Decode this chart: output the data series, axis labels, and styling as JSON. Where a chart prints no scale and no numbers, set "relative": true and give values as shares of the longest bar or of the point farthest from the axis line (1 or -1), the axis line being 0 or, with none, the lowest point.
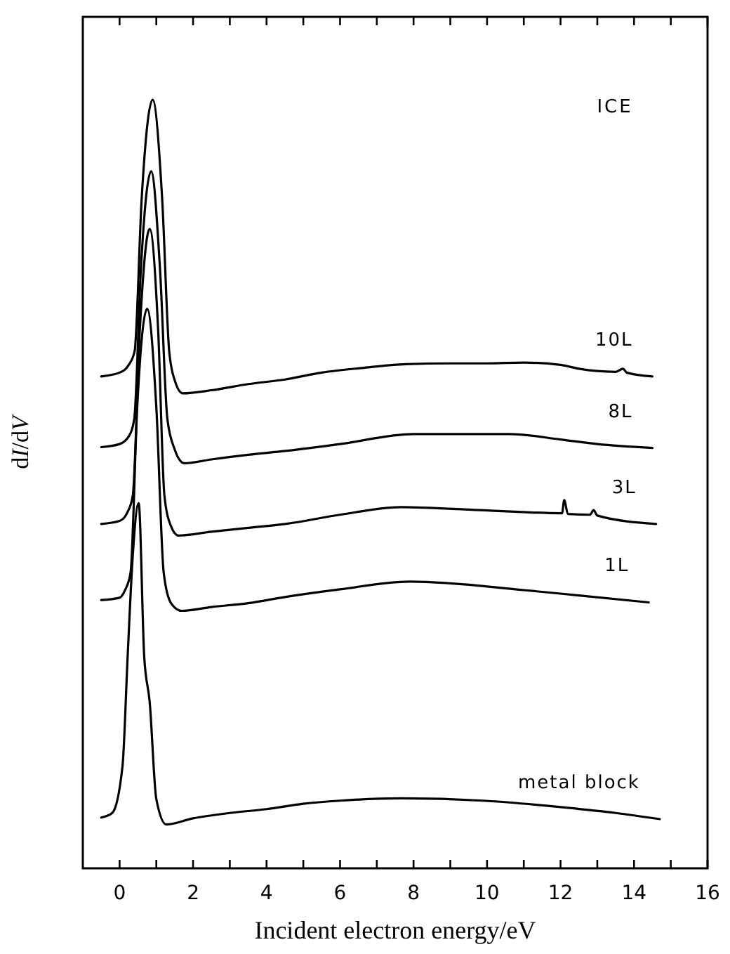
{
  "chart_data": {
    "type": "line",
    "xlabel": "Incident electron energy/eV",
    "ylabel": "dI/dV",
    "relative": true,
    "line_style": "solid",
    "annotations": [
      "ICE"
    ],
    "xlim": [
      -1,
      16
    ],
    "xticks": [
      0,
      {
        "value": 1,
        "label": null
      },
      2,
      {
        "value": 3,
        "label": null
      },
      4,
      {
        "value": 5,
        "label": null
      },
      6,
      {
        "value": 7,
        "label": null
      },
      8,
      {
        "value": 9,
        "label": null
      },
      10,
      {
        "value": 11,
        "label": null
      },
      12,
      {
        "value": 13,
        "label": null
      },
      14,
      {
        "value": 15,
        "label": null
      },
      16
    ],
    "series": [
      {
        "name": "10L",
        "color": "#000000",
        "x": [
          -0.5,
          0,
          0.25,
          0.41,
          0.6,
          0.9,
          1.16,
          1.35,
          1.5,
          1.72,
          2.5,
          3.5,
          4.5,
          5.5,
          6.6,
          7.8,
          9,
          10,
          11,
          12,
          12.5,
          13.5,
          13.7,
          13.8,
          14.5
        ],
        "values": [
          0.64,
          0.645,
          0.655,
          0.673,
          0.87,
          1,
          0.87,
          0.673,
          0.635,
          0.618,
          0.622,
          0.63,
          0.636,
          0.645,
          0.651,
          0.656,
          0.657,
          0.657,
          0.658,
          0.655,
          0.65,
          0.646,
          0.65,
          0.645,
          0.64
        ]
      },
      {
        "name": "8L",
        "color": "#000000",
        "x": [
          -0.5,
          0,
          0.25,
          0.4,
          0.58,
          0.86,
          1.1,
          1.3,
          1.5,
          1.76,
          2.5,
          3.5,
          4.5,
          6,
          8,
          10.6,
          12,
          13,
          14.5
        ],
        "values": [
          0.548,
          0.552,
          0.562,
          0.585,
          0.78,
          0.907,
          0.78,
          0.585,
          0.545,
          0.527,
          0.532,
          0.538,
          0.543,
          0.552,
          0.565,
          0.565,
          0.558,
          0.552,
          0.547
        ]
      },
      {
        "name": "3L",
        "color": "#000000",
        "x": [
          -0.5,
          0,
          0.2,
          0.36,
          0.55,
          0.82,
          1.05,
          1.22,
          1.4,
          1.6,
          2.5,
          3.5,
          4.5,
          6,
          7.65,
          9.8,
          12.04,
          12.1,
          12.2,
          12.8,
          12.9,
          13,
          14.6
        ],
        "values": [
          0.448,
          0.452,
          0.462,
          0.485,
          0.7,
          0.832,
          0.7,
          0.485,
          0.445,
          0.433,
          0.438,
          0.443,
          0.448,
          0.46,
          0.47,
          0.466,
          0.462,
          0.479,
          0.461,
          0.46,
          0.466,
          0.459,
          0.448
        ]
      },
      {
        "name": "1L",
        "color": "#000000",
        "x": [
          -0.5,
          0,
          0.15,
          0.3,
          0.48,
          0.75,
          1.0,
          1.2,
          1.4,
          1.69,
          2.5,
          3.5,
          4.5,
          6,
          7.9,
          11,
          12.5,
          14.4
        ],
        "values": [
          0.349,
          0.352,
          0.362,
          0.385,
          0.6,
          0.728,
          0.6,
          0.385,
          0.345,
          0.335,
          0.34,
          0.345,
          0.353,
          0.363,
          0.373,
          0.362,
          0.355,
          0.346
        ]
      },
      {
        "name": "metal block",
        "color": "#000000",
        "x": [
          -0.5,
          -0.2,
          0.08,
          0.22,
          0.35,
          0.52,
          0.67,
          0.82,
          1.0,
          1.27,
          2,
          3,
          4,
          5,
          6,
          7.65,
          9.9,
          12.15,
          13.5,
          14.7
        ],
        "values": [
          0.066,
          0.072,
          0.133,
          0.276,
          0.4,
          0.475,
          0.276,
          0.216,
          0.09,
          0.057,
          0.065,
          0.072,
          0.077,
          0.084,
          0.088,
          0.091,
          0.088,
          0.079,
          0.072,
          0.064
        ]
      }
    ]
  }
}
